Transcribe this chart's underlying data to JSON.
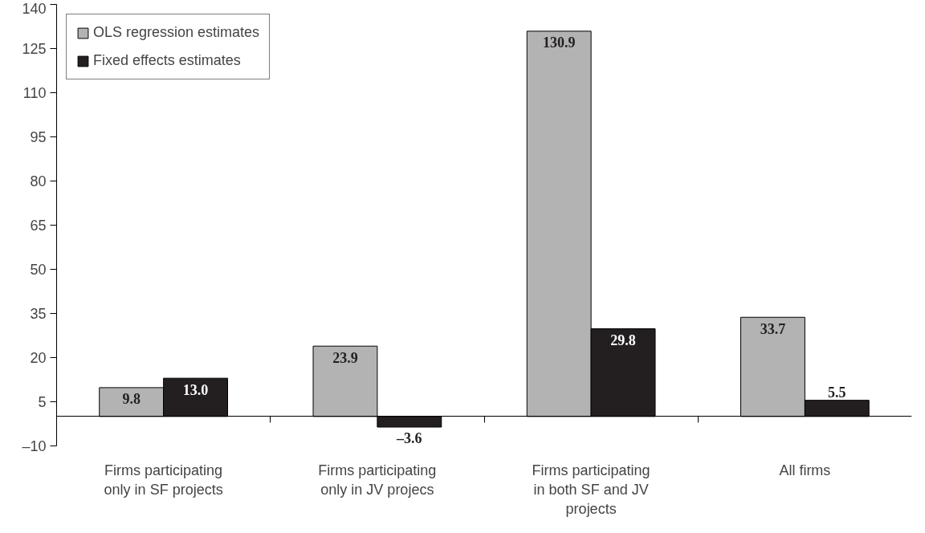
{
  "chart_data": {
    "type": "bar",
    "categories": [
      "Firms participating\nonly in SF projects",
      "Firms participating\nonly in JV projecs",
      "Firms participating\nin both SF and JV\nprojects",
      "All firms"
    ],
    "series": [
      {
        "name": "OLS regression estimates",
        "color": "#b3b3b3",
        "values": [
          9.8,
          23.9,
          130.9,
          33.7
        ],
        "value_labels": [
          "9.8",
          "23.9",
          "130.9",
          "33.7"
        ]
      },
      {
        "name": "Fixed effects estimates",
        "color": "#231f20",
        "values": [
          13.0,
          -3.6,
          29.8,
          5.5
        ],
        "value_labels": [
          "13.0",
          "–3.6",
          "29.8",
          "5.5"
        ]
      }
    ],
    "ylim": [
      -10,
      140
    ],
    "yticks": [
      {
        "value": -10,
        "label": "–10"
      },
      5,
      20,
      35,
      50,
      65,
      80,
      95,
      110,
      125,
      140
    ],
    "grid": false,
    "legend": "top left"
  }
}
